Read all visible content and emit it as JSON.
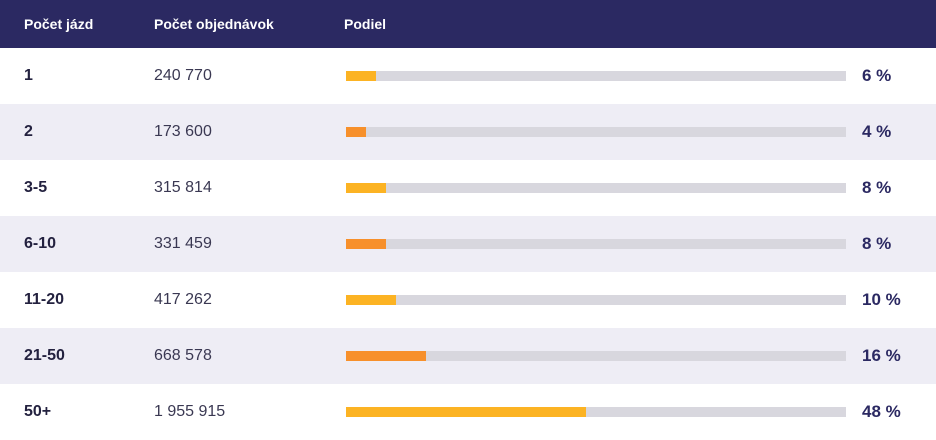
{
  "header": {
    "col_trips": "Počet jázd",
    "col_orders": "Počet objednávok",
    "col_share": "Podiel"
  },
  "colors": {
    "header_bg": "#2b2962",
    "bar_yellow": "#fcb323",
    "bar_orange": "#f7902b",
    "track": "#d8d7de",
    "row_alt": "#eeedf5"
  },
  "chart_data": {
    "type": "bar",
    "categories": [
      "1",
      "2",
      "3-5",
      "6-10",
      "11-20",
      "21-50",
      "50+"
    ],
    "series": [
      {
        "values": [
          240770,
          173600,
          315814,
          331459,
          417262,
          668578,
          1955915
        ]
      },
      {
        "values": [
          6,
          4,
          8,
          8,
          10,
          16,
          48
        ]
      }
    ],
    "ylim": [
      0,
      100
    ]
  },
  "rows": [
    {
      "trips": "1",
      "orders": "240 770",
      "share": "6 %",
      "share_value": 6,
      "bar_color": "#fcb323"
    },
    {
      "trips": "2",
      "orders": "173 600",
      "share": "4 %",
      "share_value": 4,
      "bar_color": "#f7902b"
    },
    {
      "trips": "3-5",
      "orders": "315 814",
      "share": "8 %",
      "share_value": 8,
      "bar_color": "#fcb323"
    },
    {
      "trips": "6-10",
      "orders": "331 459",
      "share": "8 %",
      "share_value": 8,
      "bar_color": "#f7902b"
    },
    {
      "trips": "11-20",
      "orders": "417 262",
      "share": "10 %",
      "share_value": 10,
      "bar_color": "#fcb323"
    },
    {
      "trips": "21-50",
      "orders": "668 578",
      "share": "16 %",
      "share_value": 16,
      "bar_color": "#f7902b"
    },
    {
      "trips": "50+",
      "orders": "1 955 915",
      "share": "48 %",
      "share_value": 48,
      "bar_color": "#fcb323"
    }
  ]
}
